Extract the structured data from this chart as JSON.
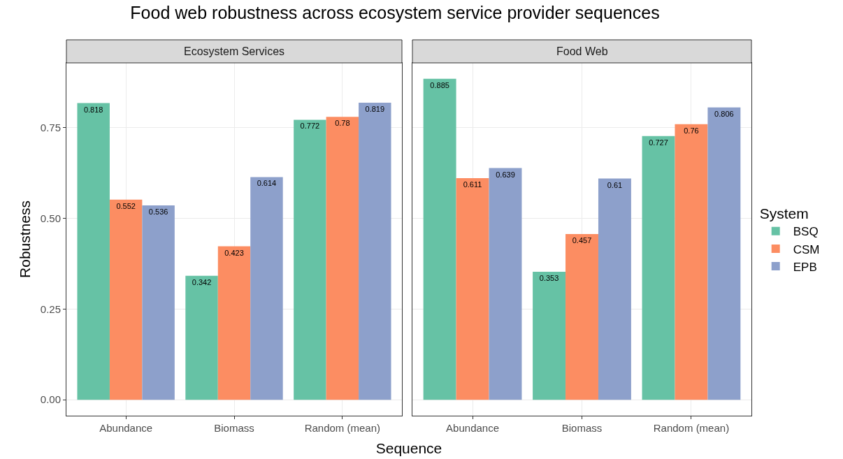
{
  "chart_data": [
    {
      "type": "bar",
      "title": "Food web robustness across ecosystem service provider sequences",
      "subtitle": "Ecosystem Services",
      "xlabel": "Sequence",
      "ylabel": "Robustness",
      "categories": [
        "Abundance",
        "Biomass",
        "Random (mean)"
      ],
      "series": [
        {
          "color": "#66c2a5",
          "values": [
            0.818,
            0.342,
            0.772
          ]
        },
        {
          "color": "#fc8d62",
          "values": [
            0.552,
            0.423,
            0.78
          ]
        },
        {
          "color": "#8da0cb",
          "values": [
            0.536,
            0.614,
            0.819
          ]
        }
      ],
      "ylim": [
        -0.044,
        0.929
      ],
      "yticks": [
        {
          "value": 0,
          "label": "0.00"
        },
        {
          "value": 0.25,
          "label": "0.25"
        },
        {
          "value": 0.5,
          "label": "0.50"
        },
        {
          "value": 0.75,
          "label": "0.75"
        }
      ],
      "grid": true,
      "data_labels": true,
      "legend": false
    },
    {
      "type": "bar",
      "subtitle": "Food Web",
      "legend_title": "System",
      "categories": [
        "Abundance",
        "Biomass",
        "Random (mean)"
      ],
      "series": [
        {
          "name": "BSQ",
          "color": "#66c2a5",
          "values": [
            0.885,
            0.353,
            0.727
          ]
        },
        {
          "name": "CSM",
          "color": "#fc8d62",
          "values": [
            0.611,
            0.457,
            0.76
          ]
        },
        {
          "name": "EPB",
          "color": "#8da0cb",
          "values": [
            0.639,
            0.61,
            0.806
          ]
        }
      ],
      "ylim": [
        -0.044,
        0.929
      ],
      "yticks": [
        0,
        0.25,
        0.5,
        0.75
      ],
      "grid": true,
      "data_labels": true,
      "legend": "right",
      "tick_labels": "x"
    }
  ]
}
